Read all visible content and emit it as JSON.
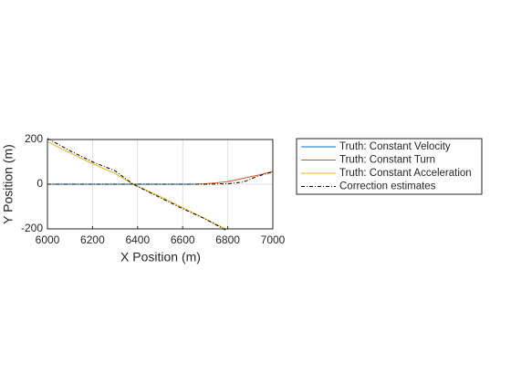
{
  "chart_data": {
    "type": "line",
    "xlabel": "X Position (m)",
    "ylabel": "Y Position (m)",
    "xlim": [
      6000,
      7000
    ],
    "xticks": [
      6000,
      6200,
      6400,
      6600,
      6800,
      7000
    ],
    "ylim": [
      -200,
      200
    ],
    "yticks": [
      -200,
      0,
      200
    ],
    "grid": true,
    "legend": "outside-right",
    "series": [
      {
        "name": "Truth: Constant Velocity",
        "color": "#0072BD",
        "style": "solid",
        "x": [
          6000,
          6200,
          6400,
          6650
        ],
        "values": [
          0,
          0,
          0,
          0
        ]
      },
      {
        "name": "Truth: Constant Turn",
        "color": "#D95319",
        "style": "solid",
        "x": [
          6650,
          6700,
          6750,
          6800,
          6850,
          6900,
          6950,
          7000
        ],
        "values": [
          0,
          2,
          6,
          12,
          22,
          33,
          44,
          57
        ]
      },
      {
        "name": "Truth: Constant Acceleration",
        "color": "#EDB120",
        "style": "solid",
        "x": [
          6000,
          6100,
          6200,
          6300,
          6380,
          6500,
          6600,
          6700,
          6790
        ],
        "values": [
          190,
          140,
          92,
          48,
          0,
          -55,
          -105,
          -155,
          -200
        ]
      },
      {
        "name": "Correction estimates",
        "color": "#000000",
        "style": "dashdot",
        "x": [
          6000,
          6100,
          6200,
          6300,
          6380,
          6500,
          6600,
          6700,
          6790,
          null,
          6000,
          6200,
          6400,
          6600,
          6700,
          6800,
          6870,
          6930,
          7000
        ],
        "values": [
          205,
          150,
          100,
          60,
          0,
          -60,
          -110,
          -155,
          -205,
          null,
          0,
          0,
          0,
          0,
          0,
          2,
          10,
          35,
          55
        ]
      }
    ]
  }
}
